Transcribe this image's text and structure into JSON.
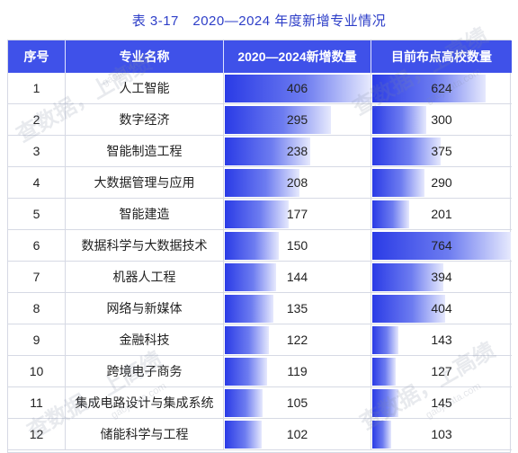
{
  "title": "表 3-17　2020—2024 年度新增专业情况",
  "headers": [
    "序号",
    "专业名称",
    "2020—2024新增数量",
    "目前布点高校数量"
  ],
  "chart_data": {
    "type": "table",
    "title": "表 3-17　2020—2024 年度新增专业情况",
    "columns": [
      "序号",
      "专业名称",
      "2020—2024新增数量",
      "目前布点高校数量"
    ],
    "rows": [
      {
        "idx": "1",
        "name": "人工智能",
        "new": 406,
        "schools": 624
      },
      {
        "idx": "2",
        "name": "数字经济",
        "new": 295,
        "schools": 300
      },
      {
        "idx": "3",
        "name": "智能制造工程",
        "new": 238,
        "schools": 375
      },
      {
        "idx": "4",
        "name": "大数据管理与应用",
        "new": 208,
        "schools": 290
      },
      {
        "idx": "5",
        "name": "智能建造",
        "new": 177,
        "schools": 201
      },
      {
        "idx": "6",
        "name": "数据科学与大数据技术",
        "new": 150,
        "schools": 764
      },
      {
        "idx": "7",
        "name": "机器人工程",
        "new": 144,
        "schools": 394
      },
      {
        "idx": "8",
        "name": "网络与新媒体",
        "new": 135,
        "schools": 404
      },
      {
        "idx": "9",
        "name": "金融科技",
        "new": 122,
        "schools": 143
      },
      {
        "idx": "10",
        "name": "跨境电子商务",
        "new": 119,
        "schools": 127
      },
      {
        "idx": "11",
        "name": "集成电路设计与集成系统",
        "new": 105,
        "schools": 145
      },
      {
        "idx": "12",
        "name": "储能科学与工程",
        "new": 102,
        "schools": 103
      }
    ],
    "new_max": 406,
    "schools_max": 764,
    "colors": {
      "header": "#3f51e9",
      "bar_start": "#2a3be6",
      "bar_end": "#e6e9fd",
      "title": "#2d3ec8"
    }
  },
  "watermarks": [
    "查数据，上高绩",
    "gaojidata.com"
  ]
}
